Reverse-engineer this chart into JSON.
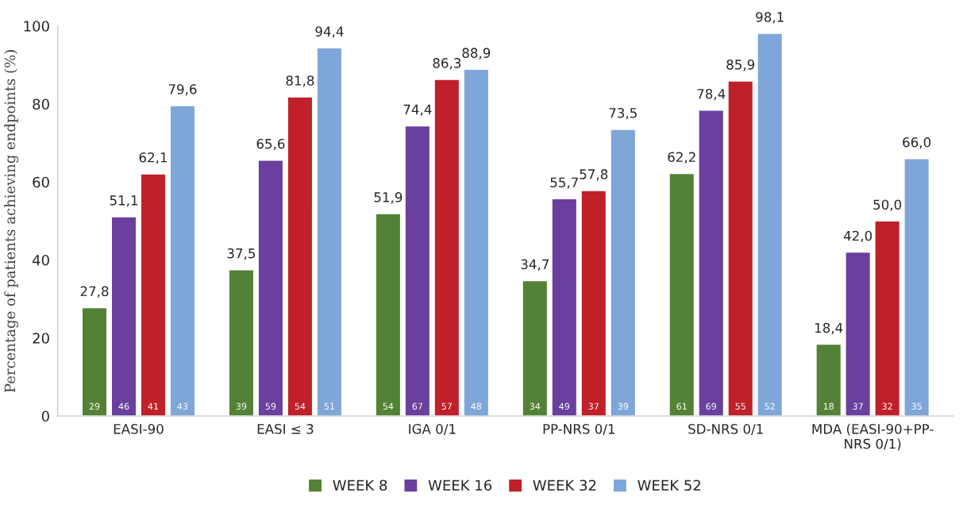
{
  "chart_data": {
    "type": "bar",
    "ylabel": "Percentage of patients achieving endpoints (%)",
    "categories": [
      "EASI-90",
      "EASI ≤ 3",
      "IGA 0/1",
      "PP-NRS 0/1",
      "SD-NRS 0/1",
      "MDA (EASI-90+PP-\nNRS 0/1)"
    ],
    "series": [
      {
        "name": "WEEK 8",
        "color": "#538135",
        "values": [
          27.8,
          37.5,
          51.9,
          34.7,
          62.2,
          18.4
        ],
        "value_labels": [
          "27,8",
          "37,5",
          "51,9",
          "34,7",
          "62,2",
          "18,4"
        ]
      },
      {
        "name": "WEEK 16",
        "color": "#6a3f9e",
        "values": [
          51.1,
          65.6,
          74.4,
          55.7,
          78.4,
          42.0
        ],
        "value_labels": [
          "51,1",
          "65,6",
          "74,4",
          "55,7",
          "78,4",
          "42,0"
        ]
      },
      {
        "name": "WEEK 32",
        "color": "#c0202a",
        "values": [
          62.1,
          81.8,
          86.3,
          57.8,
          85.9,
          50.0
        ],
        "value_labels": [
          "62,1",
          "81,8",
          "86,3",
          "57,8",
          "85,9",
          "50,0"
        ]
      },
      {
        "name": "WEEK 52",
        "color": "#7fa6d9",
        "values": [
          79.6,
          94.4,
          88.9,
          73.5,
          98.1,
          66.0
        ],
        "value_labels": [
          "79,6",
          "94,4",
          "88,9",
          "73,5",
          "98,1",
          "66,0"
        ]
      }
    ],
    "annotations": [
      "29",
      "46",
      "41",
      "43",
      "39",
      "59",
      "54",
      "51",
      "54",
      "67",
      "57",
      "48",
      "34",
      "49",
      "37",
      "39",
      "61",
      "69",
      "55",
      "52",
      "18",
      "37",
      "32",
      "35"
    ],
    "ylim": [
      0,
      100
    ],
    "yticks": [
      0,
      20,
      40,
      60,
      80,
      100
    ],
    "grid": false,
    "legend": "bottom"
  }
}
